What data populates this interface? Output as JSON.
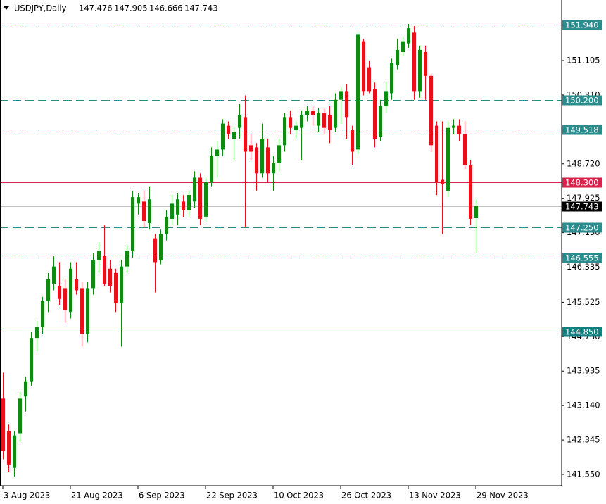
{
  "chart_data": {
    "type": "candlestick",
    "title": "USDJPY,Daily",
    "categories": [
      "3 Aug 2023",
      null,
      null,
      null,
      null,
      null,
      null,
      null,
      null,
      null,
      null,
      null,
      "21 Aug 2023",
      null,
      null,
      null,
      null,
      null,
      null,
      null,
      null,
      null,
      null,
      null,
      "6 Sep 2023",
      null,
      null,
      null,
      null,
      null,
      null,
      null,
      null,
      null,
      null,
      null,
      "22 Sep 2023",
      null,
      null,
      null,
      null,
      null,
      null,
      null,
      null,
      null,
      null,
      null,
      "10 Oct 2023",
      null,
      null,
      null,
      null,
      null,
      null,
      null,
      null,
      null,
      null,
      null,
      "26 Oct 2023",
      null,
      null,
      null,
      null,
      null,
      null,
      null,
      null,
      null,
      null,
      null,
      "13 Nov 2023",
      null,
      null,
      null,
      null,
      null,
      null,
      null,
      null,
      null,
      null,
      null,
      "29 Nov 2023"
    ],
    "open": [
      143.3,
      142.55,
      141.7,
      142.5,
      143.35,
      143.7,
      144.7,
      144.95,
      145.55,
      145.95,
      145.9,
      145.85,
      145.3,
      146.05,
      145.85,
      144.8,
      145.85,
      146.5,
      146.6,
      146.3,
      146.2,
      145.5,
      146.35,
      146.7,
      147.8,
      147.85,
      147.35,
      147.0,
      146.5,
      147.1,
      147.45,
      147.55,
      147.85,
      147.65,
      147.85,
      148.4,
      147.5,
      148.3,
      148.9,
      149.05,
      149.6,
      149.3,
      149.55,
      149.8,
      149.15,
      149.1,
      148.5,
      149.1,
      148.5,
      148.75,
      149.15,
      149.8,
      149.5,
      149.55,
      149.85,
      149.95,
      149.6,
      149.9,
      149.85,
      149.55,
      150.2,
      150.4,
      149.5,
      149.05,
      151.55,
      150.95,
      150.45,
      149.35,
      150.05,
      150.35,
      151.0,
      151.3,
      151.5,
      151.75,
      150.4,
      151.3,
      150.75,
      149.6,
      148.35,
      148.1,
      149.55,
      149.6,
      149.4,
      148.7,
      147.476
    ],
    "high": [
      143.9,
      142.7,
      142.55,
      143.45,
      143.8,
      144.85,
      145.1,
      145.65,
      146.2,
      146.6,
      146.45,
      146.05,
      146.45,
      146.45,
      146.0,
      146.0,
      146.65,
      146.9,
      147.3,
      146.5,
      146.3,
      146.5,
      146.85,
      148.1,
      148.05,
      148.1,
      148.2,
      147.1,
      147.2,
      147.65,
      148.0,
      148.05,
      148.0,
      148.1,
      148.55,
      148.5,
      148.4,
      149.1,
      149.25,
      149.75,
      149.7,
      149.55,
      150.1,
      150.3,
      149.4,
      149.2,
      149.65,
      149.3,
      148.9,
      149.3,
      149.9,
      149.95,
      149.7,
      149.95,
      150.05,
      150.05,
      150.0,
      150.0,
      150.05,
      150.35,
      150.5,
      150.55,
      149.6,
      151.75,
      151.6,
      151.1,
      150.6,
      150.2,
      150.6,
      151.15,
      151.6,
      151.65,
      151.95,
      151.9,
      151.45,
      151.45,
      150.8,
      149.7,
      149.7,
      149.7,
      149.75,
      149.75,
      149.7,
      148.8,
      147.905
    ],
    "low": [
      141.9,
      141.6,
      141.5,
      142.3,
      143.0,
      143.6,
      144.4,
      144.8,
      145.3,
      145.8,
      145.45,
      145.05,
      145.15,
      145.7,
      144.5,
      144.6,
      145.7,
      146.2,
      145.9,
      145.75,
      145.3,
      144.5,
      146.2,
      146.55,
      147.55,
      147.25,
      147.2,
      145.75,
      146.4,
      146.95,
      147.3,
      147.3,
      147.5,
      147.5,
      147.7,
      147.3,
      147.4,
      148.2,
      148.4,
      148.9,
      149.3,
      148.8,
      149.3,
      147.25,
      148.8,
      148.1,
      148.4,
      148.3,
      148.1,
      148.55,
      149.0,
      149.4,
      149.3,
      148.8,
      149.7,
      149.6,
      149.45,
      149.4,
      149.2,
      149.45,
      149.65,
      149.3,
      148.7,
      148.95,
      150.3,
      150.35,
      149.1,
      149.25,
      149.9,
      150.2,
      150.9,
      151.2,
      151.4,
      150.2,
      150.25,
      150.2,
      149.0,
      148.0,
      147.1,
      147.95,
      149.4,
      149.25,
      148.6,
      147.3,
      146.666
    ],
    "close": [
      142.1,
      141.78,
      142.45,
      143.3,
      143.7,
      144.7,
      144.95,
      145.55,
      146.05,
      146.35,
      145.6,
      145.35,
      146.3,
      145.8,
      144.8,
      145.85,
      146.5,
      146.7,
      145.95,
      145.9,
      145.5,
      146.35,
      146.7,
      147.95,
      147.95,
      147.4,
      147.9,
      146.45,
      147.1,
      147.5,
      147.8,
      147.9,
      147.65,
      148.0,
      148.4,
      147.45,
      148.3,
      148.9,
      149.05,
      149.65,
      149.4,
      149.45,
      149.85,
      149.0,
      149.0,
      148.5,
      149.3,
      148.5,
      148.75,
      149.15,
      149.8,
      149.55,
      149.6,
      149.85,
      149.95,
      149.85,
      149.9,
      149.55,
      149.5,
      150.2,
      150.4,
      149.8,
      149.0,
      151.7,
      150.4,
      150.4,
      149.3,
      150.05,
      150.4,
      151.05,
      151.35,
      151.55,
      151.85,
      150.4,
      151.35,
      150.75,
      149.15,
      148.3,
      148.25,
      149.55,
      149.6,
      149.4,
      148.7,
      147.45,
      147.743
    ],
    "up_color": "#0f8a12",
    "down_color": "#e8101c",
    "ylim": [
      141.29,
      152.47
    ],
    "yticks": [
      151.105,
      {
        "value": 150.31,
        "label": "150.310"
      },
      {
        "value": 148.72,
        "label": "148.720"
      },
      147.925,
      {
        "value": 147.13,
        "label": "147.130"
      },
      146.335,
      145.525,
      {
        "value": 144.73,
        "label": "144.730"
      },
      143.935,
      {
        "value": 143.14,
        "label": "143.140"
      },
      142.345,
      {
        "value": 141.55,
        "label": "141.550"
      }
    ],
    "levels": {
      "values": [
        151.94,
        150.2,
        149.518,
        148.3,
        147.25,
        146.555,
        144.85
      ],
      "value_labels": [
        "151.940",
        "150.200",
        "149.518",
        "148.300",
        "147.250",
        "146.555",
        "144.850"
      ],
      "colors": [
        "#2a8c8c",
        "#2a8c8c",
        "#2a8c8c",
        "#d8214a",
        "#2a8c8c",
        "#2a8c8c",
        "#0f7f80"
      ],
      "dashed": [
        true,
        true,
        true,
        false,
        true,
        true,
        false
      ]
    }
  }
}
